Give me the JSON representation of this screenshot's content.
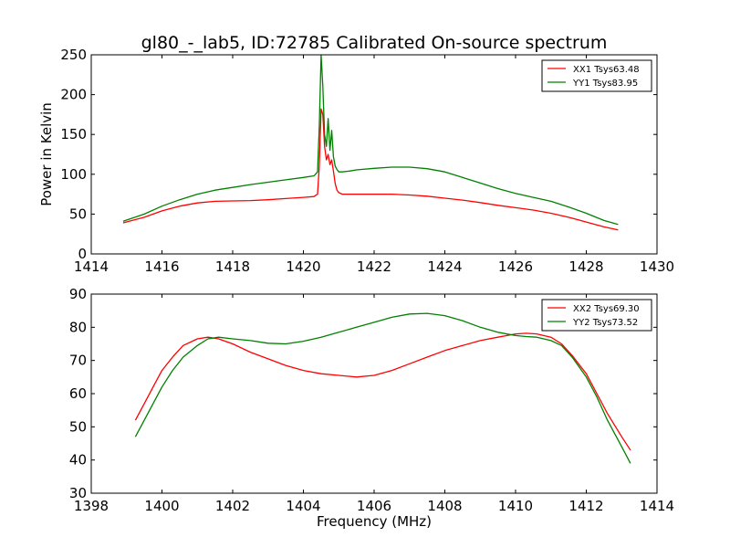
{
  "chart_data": [
    {
      "type": "line",
      "title": "gl80_-_lab5, ID:72785 Calibrated On-source spectrum",
      "xlabel": "",
      "ylabel": "Power in Kelvin",
      "xlim": [
        1414,
        1430
      ],
      "ylim": [
        0,
        250
      ],
      "xticks": [
        1414,
        1416,
        1418,
        1420,
        1422,
        1424,
        1426,
        1428,
        1430
      ],
      "yticks": [
        0,
        50,
        100,
        150,
        200,
        250
      ],
      "legend_position": "top-right",
      "grid": false,
      "series": [
        {
          "name": "XX1 Tsys63.48",
          "color": "#ff0000",
          "x": [
            1414.9,
            1415.5,
            1416.0,
            1416.5,
            1417.0,
            1417.5,
            1418.0,
            1418.5,
            1419.0,
            1419.5,
            1420.0,
            1420.3,
            1420.4,
            1420.45,
            1420.5,
            1420.55,
            1420.6,
            1420.65,
            1420.7,
            1420.75,
            1420.8,
            1420.85,
            1420.9,
            1420.95,
            1421.0,
            1421.1,
            1421.3,
            1421.5,
            1422.0,
            1422.5,
            1423.0,
            1423.5,
            1424.0,
            1424.5,
            1425.0,
            1425.5,
            1426.0,
            1426.5,
            1427.0,
            1427.5,
            1428.0,
            1428.5,
            1428.9
          ],
          "y": [
            39,
            46,
            54,
            60,
            64,
            66,
            66.5,
            67,
            68,
            69.5,
            71,
            72,
            75,
            110,
            182,
            175,
            135,
            118,
            125,
            112,
            118,
            104,
            88,
            80,
            77,
            75,
            75,
            75,
            75,
            75,
            74,
            72.5,
            70,
            67.5,
            64.5,
            61,
            58,
            55,
            51,
            46,
            40,
            34,
            30
          ]
        },
        {
          "name": "YY1 Tsys83.95",
          "color": "#008000",
          "x": [
            1414.9,
            1415.5,
            1416.0,
            1416.5,
            1417.0,
            1417.5,
            1418.0,
            1418.5,
            1419.0,
            1419.5,
            1420.0,
            1420.3,
            1420.4,
            1420.45,
            1420.5,
            1420.55,
            1420.6,
            1420.65,
            1420.7,
            1420.75,
            1420.8,
            1420.85,
            1420.9,
            1420.95,
            1421.0,
            1421.1,
            1421.3,
            1421.5,
            1422.0,
            1422.5,
            1423.0,
            1423.5,
            1424.0,
            1424.5,
            1425.0,
            1425.5,
            1426.0,
            1426.5,
            1427.0,
            1427.5,
            1428.0,
            1428.5,
            1428.9
          ],
          "y": [
            41,
            50,
            60,
            68,
            75,
            80,
            83.5,
            87,
            90,
            93,
            96,
            98,
            103,
            160,
            250,
            210,
            150,
            135,
            170,
            130,
            155,
            122,
            110,
            106,
            103,
            103,
            104,
            105.5,
            107.5,
            109,
            109,
            107,
            103,
            96,
            89,
            82,
            76,
            71,
            66,
            59,
            51,
            42,
            37
          ]
        }
      ]
    },
    {
      "type": "line",
      "title": "",
      "xlabel": "Frequency (MHz)",
      "ylabel": "",
      "xlim": [
        1398,
        1414
      ],
      "ylim": [
        30,
        90
      ],
      "xticks": [
        1398,
        1400,
        1402,
        1404,
        1406,
        1408,
        1410,
        1412,
        1414
      ],
      "yticks": [
        30,
        40,
        50,
        60,
        70,
        80,
        90
      ],
      "legend_position": "top-right",
      "grid": false,
      "series": [
        {
          "name": "XX2 Tsys69.30",
          "color": "#ff0000",
          "x": [
            1399.25,
            1399.5,
            1399.8,
            1400.0,
            1400.3,
            1400.6,
            1401.0,
            1401.3,
            1401.6,
            1402.0,
            1402.5,
            1403.0,
            1403.5,
            1404.0,
            1404.5,
            1405.0,
            1405.5,
            1406.0,
            1406.5,
            1407.0,
            1407.5,
            1408.0,
            1408.5,
            1409.0,
            1409.5,
            1410.0,
            1410.3,
            1410.6,
            1411.0,
            1411.3,
            1411.6,
            1412.0,
            1412.3,
            1412.6,
            1413.0,
            1413.25
          ],
          "y": [
            52,
            57,
            63,
            67,
            71,
            74.5,
            76.5,
            77,
            76.5,
            75,
            72.5,
            70.5,
            68.5,
            67,
            66,
            65.5,
            65,
            65.5,
            67,
            69,
            71,
            73,
            74.5,
            76,
            77,
            78,
            78.2,
            78,
            77,
            75,
            71.5,
            66,
            60,
            54,
            47,
            43
          ]
        },
        {
          "name": "YY2 Tsys73.52",
          "color": "#008000",
          "x": [
            1399.25,
            1399.5,
            1399.8,
            1400.0,
            1400.3,
            1400.6,
            1401.0,
            1401.3,
            1401.6,
            1402.0,
            1402.5,
            1403.0,
            1403.5,
            1404.0,
            1404.5,
            1405.0,
            1405.5,
            1406.0,
            1406.5,
            1407.0,
            1407.5,
            1408.0,
            1408.5,
            1409.0,
            1409.5,
            1410.0,
            1410.3,
            1410.6,
            1411.0,
            1411.3,
            1411.6,
            1412.0,
            1412.3,
            1412.6,
            1413.0,
            1413.25
          ],
          "y": [
            47,
            52,
            58,
            62,
            67,
            71,
            74.5,
            76.5,
            77,
            76.5,
            76,
            75.2,
            75,
            75.8,
            77,
            78.5,
            80,
            81.5,
            83,
            84,
            84.2,
            83.5,
            82,
            80,
            78.5,
            77.5,
            77.2,
            77,
            76,
            74.5,
            71,
            65,
            59,
            52,
            44,
            39
          ]
        }
      ]
    }
  ]
}
